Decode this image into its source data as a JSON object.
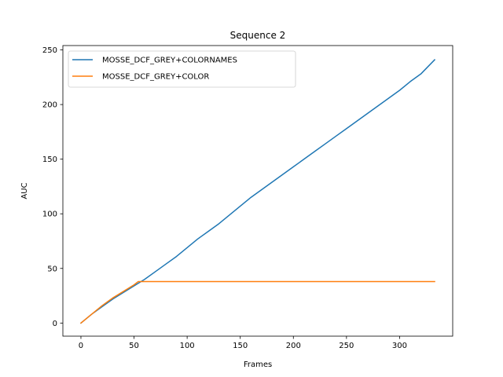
{
  "chart_data": {
    "type": "line",
    "title": "Sequence 2",
    "xlabel": "Frames",
    "ylabel": "AUC",
    "xlim": [
      -17,
      350
    ],
    "ylim": [
      -12,
      254
    ],
    "xticks": [
      0,
      50,
      100,
      150,
      200,
      250,
      300
    ],
    "yticks": [
      0,
      50,
      100,
      150,
      200,
      250
    ],
    "grid": false,
    "legend_position": "top-left",
    "series": [
      {
        "name": "MOSSE_DCF_GREY+COLORNAMES",
        "color": "#1f77b4",
        "x": [
          0,
          10,
          20,
          30,
          40,
          50,
          60,
          70,
          80,
          90,
          100,
          110,
          120,
          130,
          140,
          150,
          160,
          170,
          180,
          190,
          200,
          210,
          220,
          230,
          240,
          250,
          260,
          270,
          280,
          290,
          300,
          310,
          320,
          333
        ],
        "y": [
          0,
          8,
          15,
          22,
          28,
          34,
          40,
          47,
          54,
          61,
          69,
          77,
          84,
          91,
          99,
          107,
          115,
          122,
          129,
          136,
          143,
          150,
          157,
          164,
          171,
          178,
          185,
          192,
          199,
          206,
          213,
          221,
          228,
          241
        ]
      },
      {
        "name": "MOSSE_DCF_GREY+COLOR",
        "color": "#ff7f0e",
        "x": [
          0,
          10,
          20,
          30,
          40,
          50,
          54,
          60,
          100,
          150,
          200,
          250,
          300,
          333
        ],
        "y": [
          0,
          8,
          16,
          23,
          29,
          35,
          38,
          38,
          38,
          38,
          38,
          38,
          38,
          38
        ]
      }
    ]
  }
}
